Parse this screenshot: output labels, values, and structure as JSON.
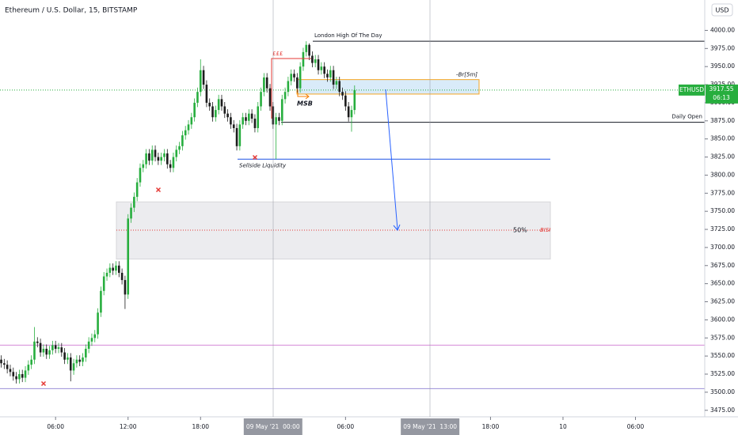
{
  "chart_data": {
    "type": "candlestick",
    "title": "Ethereum / U.S. Dollar, 15, BITSTAMP",
    "currency": "USD",
    "price_tag": {
      "symbol": "ETHUSD",
      "price": "3917.55",
      "countdown": "06:13"
    },
    "up_color": "#27ae3e",
    "down_color": "#1c1c1c",
    "x": [
      "2021-05-08T01:30",
      "2021-05-08T01:45",
      "2021-05-08T02:00",
      "2021-05-08T02:15",
      "2021-05-08T02:30",
      "2021-05-08T02:45",
      "2021-05-08T03:00",
      "2021-05-08T03:15",
      "2021-05-08T03:30",
      "2021-05-08T03:45",
      "2021-05-08T04:00",
      "2021-05-08T04:15",
      "2021-05-08T04:30",
      "2021-05-08T04:45",
      "2021-05-08T05:00",
      "2021-05-08T05:15",
      "2021-05-08T05:30",
      "2021-05-08T05:45",
      "2021-05-08T06:00",
      "2021-05-08T06:15",
      "2021-05-08T06:30",
      "2021-05-08T06:45",
      "2021-05-08T07:00",
      "2021-05-08T07:15",
      "2021-05-08T07:30",
      "2021-05-08T07:45",
      "2021-05-08T08:00",
      "2021-05-08T08:15",
      "2021-05-08T08:30",
      "2021-05-08T08:45",
      "2021-05-08T09:00",
      "2021-05-08T09:15",
      "2021-05-08T09:30",
      "2021-05-08T09:45",
      "2021-05-08T10:00",
      "2021-05-08T10:15",
      "2021-05-08T10:30",
      "2021-05-08T10:45",
      "2021-05-08T11:00",
      "2021-05-08T11:15",
      "2021-05-08T11:30",
      "2021-05-08T11:45",
      "2021-05-08T12:00",
      "2021-05-08T12:15",
      "2021-05-08T12:30",
      "2021-05-08T12:45",
      "2021-05-08T13:00",
      "2021-05-08T13:15",
      "2021-05-08T13:30",
      "2021-05-08T13:45",
      "2021-05-08T14:00",
      "2021-05-08T14:15",
      "2021-05-08T14:30",
      "2021-05-08T14:45",
      "2021-05-08T15:00",
      "2021-05-08T15:15",
      "2021-05-08T15:30",
      "2021-05-08T15:45",
      "2021-05-08T16:00",
      "2021-05-08T16:15",
      "2021-05-08T16:30",
      "2021-05-08T16:45",
      "2021-05-08T17:00",
      "2021-05-08T17:15",
      "2021-05-08T17:30",
      "2021-05-08T17:45",
      "2021-05-08T18:00",
      "2021-05-08T18:15",
      "2021-05-08T18:30",
      "2021-05-08T18:45",
      "2021-05-08T19:00",
      "2021-05-08T19:15",
      "2021-05-08T19:30",
      "2021-05-08T19:45",
      "2021-05-08T20:00",
      "2021-05-08T20:15",
      "2021-05-08T20:30",
      "2021-05-08T20:45",
      "2021-05-08T21:00",
      "2021-05-08T21:15",
      "2021-05-08T21:30",
      "2021-05-08T21:45",
      "2021-05-08T22:00",
      "2021-05-08T22:15",
      "2021-05-08T22:30",
      "2021-05-08T22:45",
      "2021-05-08T23:00",
      "2021-05-08T23:15",
      "2021-05-08T23:30",
      "2021-05-08T23:45",
      "2021-05-09T00:00",
      "2021-05-09T00:15",
      "2021-05-09T00:30",
      "2021-05-09T00:45",
      "2021-05-09T01:00",
      "2021-05-09T01:15",
      "2021-05-09T01:30",
      "2021-05-09T01:45",
      "2021-05-09T02:00",
      "2021-05-09T02:15",
      "2021-05-09T02:30",
      "2021-05-09T02:45",
      "2021-05-09T03:00",
      "2021-05-09T03:15",
      "2021-05-09T03:30",
      "2021-05-09T03:45",
      "2021-05-09T04:00",
      "2021-05-09T04:15",
      "2021-05-09T04:30",
      "2021-05-09T04:45",
      "2021-05-09T05:00",
      "2021-05-09T05:15",
      "2021-05-09T05:30",
      "2021-05-09T05:45",
      "2021-05-09T06:00",
      "2021-05-09T06:15",
      "2021-05-09T06:30",
      "2021-05-09T06:45"
    ],
    "open": [
      3545,
      3540,
      3538,
      3532,
      3528,
      3522,
      3518,
      3525,
      3520,
      3530,
      3538,
      3545,
      3570,
      3568,
      3555,
      3560,
      3552,
      3558,
      3565,
      3560,
      3562,
      3555,
      3545,
      3548,
      3530,
      3540,
      3545,
      3542,
      3548,
      3560,
      3570,
      3575,
      3580,
      3610,
      3640,
      3660,
      3665,
      3672,
      3668,
      3675,
      3665,
      3655,
      3635,
      3740,
      3755,
      3770,
      3790,
      3810,
      3815,
      3830,
      3820,
      3835,
      3825,
      3820,
      3825,
      3830,
      3815,
      3810,
      3825,
      3835,
      3840,
      3855,
      3862,
      3870,
      3880,
      3900,
      3915,
      3945,
      3925,
      3900,
      3895,
      3880,
      3890,
      3905,
      3895,
      3885,
      3880,
      3870,
      3865,
      3840,
      3870,
      3880,
      3875,
      3885,
      3878,
      3865,
      3895,
      3915,
      3935,
      3920,
      3895,
      3870,
      3880,
      3875,
      3905,
      3915,
      3930,
      3940,
      3935,
      3920,
      3950,
      3970,
      3980,
      3965,
      3955,
      3960,
      3945,
      3950,
      3940,
      3935,
      3945,
      3925,
      3930,
      3915,
      3910,
      3895,
      3880,
      3890
    ],
    "high": [
      3551,
      3546,
      3544,
      3538,
      3534,
      3528,
      3531,
      3531,
      3536,
      3544,
      3551,
      3590,
      3576,
      3574,
      3566,
      3566,
      3564,
      3571,
      3571,
      3568,
      3568,
      3561,
      3554,
      3554,
      3546,
      3551,
      3551,
      3554,
      3566,
      3576,
      3581,
      3586,
      3616,
      3646,
      3666,
      3671,
      3678,
      3678,
      3681,
      3681,
      3671,
      3661,
      3746,
      3761,
      3776,
      3796,
      3816,
      3821,
      3836,
      3836,
      3841,
      3841,
      3831,
      3831,
      3836,
      3836,
      3821,
      3831,
      3841,
      3846,
      3861,
      3868,
      3876,
      3886,
      3906,
      3921,
      3960,
      3951,
      3931,
      3906,
      3901,
      3896,
      3911,
      3911,
      3901,
      3891,
      3886,
      3876,
      3871,
      3876,
      3886,
      3886,
      3891,
      3891,
      3884,
      3901,
      3921,
      3941,
      3941,
      3926,
      3901,
      3886,
      3886,
      3911,
      3921,
      3936,
      3946,
      3946,
      3941,
      3956,
      3976,
      3985,
      3982,
      3971,
      3966,
      3966,
      3956,
      3956,
      3946,
      3951,
      3951,
      3936,
      3936,
      3921,
      3916,
      3901,
      3896,
      3924
    ],
    "low": [
      3534,
      3532,
      3526,
      3522,
      3516,
      3512,
      3512,
      3514,
      3514,
      3524,
      3532,
      3539,
      3562,
      3549,
      3549,
      3546,
      3546,
      3552,
      3554,
      3554,
      3549,
      3539,
      3539,
      3515,
      3524,
      3534,
      3536,
      3536,
      3542,
      3554,
      3564,
      3569,
      3574,
      3604,
      3634,
      3654,
      3659,
      3662,
      3662,
      3659,
      3649,
      3615,
      3629,
      3734,
      3749,
      3764,
      3784,
      3804,
      3809,
      3814,
      3814,
      3819,
      3814,
      3814,
      3819,
      3809,
      3804,
      3804,
      3819,
      3829,
      3834,
      3849,
      3856,
      3864,
      3874,
      3894,
      3909,
      3919,
      3894,
      3889,
      3874,
      3874,
      3884,
      3889,
      3879,
      3874,
      3864,
      3859,
      3834,
      3834,
      3864,
      3869,
      3869,
      3872,
      3859,
      3859,
      3889,
      3909,
      3914,
      3889,
      3864,
      3822,
      3869,
      3869,
      3899,
      3909,
      3924,
      3929,
      3914,
      3914,
      3944,
      3964,
      3959,
      3949,
      3949,
      3939,
      3939,
      3934,
      3929,
      3929,
      3919,
      3919,
      3909,
      3904,
      3889,
      3874,
      3860,
      3884
    ],
    "close": [
      3540,
      3538,
      3532,
      3528,
      3522,
      3518,
      3525,
      3520,
      3530,
      3538,
      3545,
      3570,
      3568,
      3555,
      3560,
      3552,
      3558,
      3565,
      3560,
      3562,
      3555,
      3545,
      3548,
      3530,
      3540,
      3545,
      3542,
      3548,
      3560,
      3570,
      3575,
      3580,
      3610,
      3640,
      3660,
      3665,
      3672,
      3668,
      3675,
      3665,
      3655,
      3635,
      3740,
      3755,
      3770,
      3790,
      3810,
      3815,
      3830,
      3820,
      3835,
      3825,
      3820,
      3825,
      3830,
      3815,
      3810,
      3825,
      3835,
      3840,
      3855,
      3862,
      3870,
      3880,
      3900,
      3915,
      3945,
      3925,
      3900,
      3895,
      3880,
      3890,
      3905,
      3895,
      3885,
      3880,
      3870,
      3865,
      3840,
      3870,
      3880,
      3875,
      3885,
      3878,
      3865,
      3895,
      3915,
      3935,
      3920,
      3895,
      3870,
      3880,
      3875,
      3905,
      3915,
      3930,
      3940,
      3935,
      3920,
      3950,
      3970,
      3980,
      3965,
      3955,
      3960,
      3945,
      3950,
      3940,
      3935,
      3945,
      3925,
      3930,
      3915,
      3910,
      3895,
      3880,
      3890,
      3917.55
    ],
    "xlim": [
      "2021-05-08T01:24",
      "2021-05-10T11:44"
    ],
    "xticks": [
      {
        "value": "2021-05-08T06:00",
        "label": "06:00"
      },
      {
        "value": "2021-05-08T12:00",
        "label": "12:00"
      },
      {
        "value": "2021-05-08T18:00",
        "label": "18:00"
      },
      {
        "value": "2021-05-09T06:00",
        "label": "06:00"
      },
      {
        "value": "2021-05-09T18:00",
        "label": "18:00"
      },
      {
        "value": "2021-05-10T00:00",
        "label": "10"
      },
      {
        "value": "2021-05-10T06:00",
        "label": "06:00"
      }
    ],
    "cursor_labels": [
      {
        "value": "2021-05-09T00:00",
        "label": "09 May '21  00:00"
      },
      {
        "value": "2021-05-09T13:00",
        "label": "09 May '21  13:00"
      }
    ],
    "ylim": [
      3466,
      4042
    ],
    "yticks": [
      {
        "value": 3475,
        "label": "3475.00"
      },
      {
        "value": 3500,
        "label": "3500.00"
      },
      {
        "value": 3525,
        "label": "3525.00"
      },
      {
        "value": 3550,
        "label": "3550.00"
      },
      {
        "value": 3575,
        "label": "3575.00"
      },
      {
        "value": 3600,
        "label": "3600.00"
      },
      {
        "value": 3625,
        "label": "3625.00"
      },
      {
        "value": 3650,
        "label": "3650.00"
      },
      {
        "value": 3675,
        "label": "3675.00"
      },
      {
        "value": 3700,
        "label": "3700.00"
      },
      {
        "value": 3725,
        "label": "3725.00"
      },
      {
        "value": 3750,
        "label": "3750.00"
      },
      {
        "value": 3775,
        "label": "3775.00"
      },
      {
        "value": 3800,
        "label": "3800.00"
      },
      {
        "value": 3825,
        "label": "3825.00"
      },
      {
        "value": 3850,
        "label": "3850.00"
      },
      {
        "value": 3875,
        "label": "3875.00"
      },
      {
        "value": 3900,
        "label": "3900.00"
      },
      {
        "value": 3925,
        "label": "3925.00"
      },
      {
        "value": 3950,
        "label": "3950.00"
      },
      {
        "value": 3975,
        "label": "3975.00"
      },
      {
        "value": 4000,
        "label": "4000.00"
      }
    ],
    "levels": [
      {
        "label": "London High Of The Day",
        "value": 3985,
        "color": "#131722"
      },
      {
        "label": "Daily Open",
        "value": 3873,
        "color": "#131722"
      },
      {
        "label": "Sellside Liquidity",
        "value": 3822,
        "color": "#1e53e5"
      },
      {
        "value": 3565,
        "color": "#d58ad8"
      },
      {
        "value": 3505,
        "color": "#9b8fd8"
      }
    ],
    "breaker": {
      "label": "-Br[5m]",
      "top": 3932,
      "bottom": 3912
    },
    "msb_label": "MSB",
    "eq_high_label": "£££",
    "zone": {
      "top": 3763,
      "bottom": 3684,
      "mid": 3724,
      "mid_label": "50%",
      "label": "BISI"
    }
  }
}
